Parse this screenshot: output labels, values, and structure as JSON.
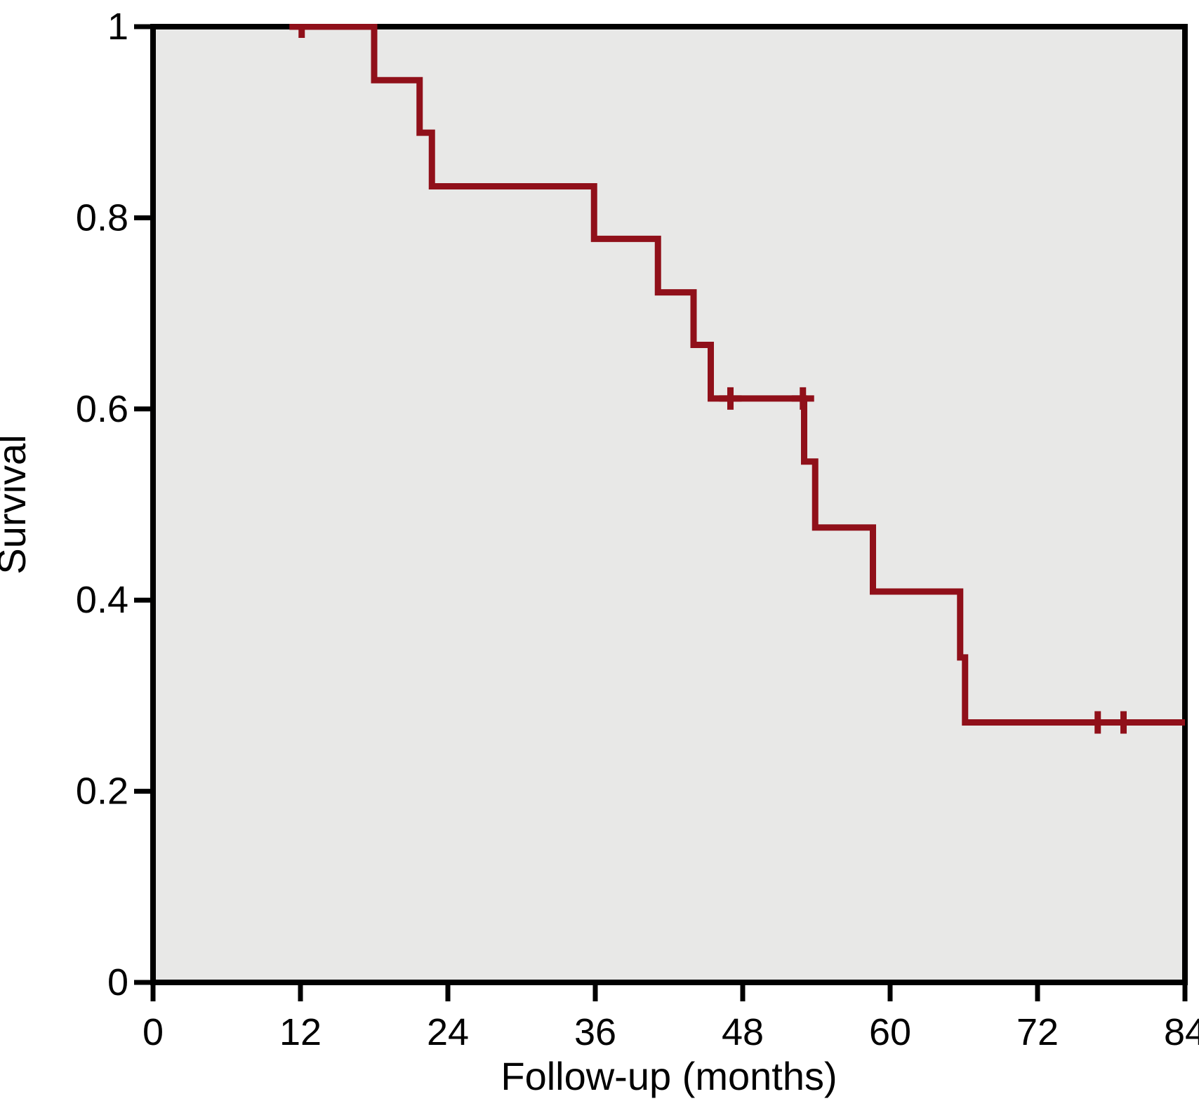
{
  "chart_data": {
    "type": "line",
    "subtype": "kaplan-meier-step",
    "title": "",
    "xlabel": "Follow-up (months)",
    "ylabel": "Survival",
    "xlim": [
      0,
      84
    ],
    "ylim": [
      0,
      1
    ],
    "grid": false,
    "legend": false,
    "x_ticks": [
      {
        "value": 0,
        "label": "0"
      },
      {
        "value": 12,
        "label": "12"
      },
      {
        "value": 24,
        "label": "24"
      },
      {
        "value": 36,
        "label": "36"
      },
      {
        "value": 48,
        "label": "48"
      },
      {
        "value": 60,
        "label": "60"
      },
      {
        "value": 72,
        "label": "72"
      },
      {
        "value": 84,
        "label": "84"
      }
    ],
    "y_ticks": [
      {
        "value": 0,
        "label": "0"
      },
      {
        "value": 0.2,
        "label": "0.2"
      },
      {
        "value": 0.4,
        "label": "0.4"
      },
      {
        "value": 0.6,
        "label": "0.6"
      },
      {
        "value": 0.8,
        "label": "0.8"
      },
      {
        "value": 1,
        "label": "1"
      }
    ],
    "series": [
      {
        "name": "survival-curve",
        "color": "#90101A",
        "curve_start": {
          "month": 11.1,
          "survival": 1.0
        },
        "steps": [
          {
            "month": 18.0,
            "survival": 0.944
          },
          {
            "month": 21.7,
            "survival": 0.889
          },
          {
            "month": 22.7,
            "survival": 0.833
          },
          {
            "month": 35.9,
            "survival": 0.778
          },
          {
            "month": 41.1,
            "survival": 0.722
          },
          {
            "month": 44.0,
            "survival": 0.667
          },
          {
            "month": 45.4,
            "survival": 0.611
          },
          {
            "month": 53.0,
            "survival": 0.545
          },
          {
            "month": 53.9,
            "survival": 0.476
          },
          {
            "month": 58.6,
            "survival": 0.409
          },
          {
            "month": 65.7,
            "survival": 0.34
          },
          {
            "month": 66.1,
            "survival": 0.272
          }
        ],
        "curve_end_month": 84,
        "censor_marks": [
          {
            "month": 12.1,
            "survival": 1.0
          },
          {
            "month": 47.0,
            "survival": 0.611
          },
          {
            "month": 52.9,
            "survival": 0.611
          },
          {
            "month": 76.9,
            "survival": 0.272
          },
          {
            "month": 79.0,
            "survival": 0.272
          }
        ]
      }
    ],
    "colors": {
      "curve": "#90101A",
      "plot_background": "#E8E8E7",
      "axis": "#000000",
      "page_background": "#FFFFFF"
    }
  }
}
